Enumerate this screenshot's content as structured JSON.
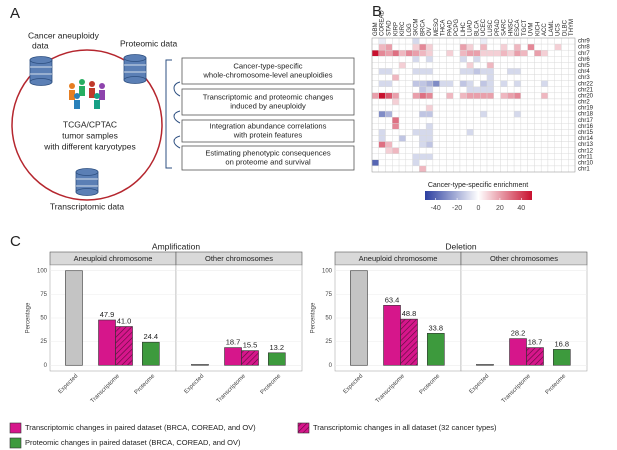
{
  "panel_labels": [
    "A",
    "B",
    "C"
  ],
  "diagram": {
    "sources": [
      [
        "Cancer aneuploidy",
        "data"
      ],
      [
        "Proteomic data"
      ],
      [
        "Transcriptomic data"
      ]
    ],
    "center": [
      "TCGA/CPTAC",
      "tumor samples",
      "with different karyotypes"
    ],
    "steps": [
      [
        "Cancer-type-specific",
        "whole-chromosome-level aneuploidies"
      ],
      [
        "Transcriptomic and proteomic changes",
        "induced by aneuploidy"
      ],
      [
        "Integration abundance correlations",
        "with protein features"
      ],
      [
        "Estimating phenotypic consequences",
        "on proteome and survival"
      ]
    ]
  },
  "chart_data": [
    {
      "type": "heatmap",
      "x": [
        "GBM",
        "COREAD",
        "STAD",
        "KIRP",
        "KIRC",
        "LGG",
        "SKCM",
        "BRCA",
        "OV",
        "MESO",
        "THCA",
        "PAAD",
        "PCPG",
        "LIHC",
        "LUAD",
        "BLCA",
        "UCEC",
        "LUSC",
        "PRAD",
        "SARC",
        "HNSC",
        "ESCA",
        "TGCT",
        "UVM",
        "KICH",
        "ACC",
        "LAML",
        "UCS",
        "DLBC",
        "THYM"
      ],
      "y": [
        "chr9",
        "chr8",
        "chr7",
        "chr6",
        "chr5",
        "chr4",
        "chr3",
        "chr22",
        "chr21",
        "chr20",
        "chr2",
        "chr19",
        "chr18",
        "chr17",
        "chr16",
        "chr15",
        "chr14",
        "chr13",
        "chr12",
        "chr11",
        "chr10",
        "chr1"
      ],
      "values": [
        [
          0,
          -5,
          0,
          0,
          0,
          0,
          -10,
          0,
          0,
          0,
          0,
          0,
          0,
          0,
          0,
          0,
          -5,
          0,
          0,
          0,
          0,
          0,
          0,
          0,
          0,
          0,
          0,
          0,
          0,
          0
        ],
        [
          0,
          15,
          20,
          0,
          0,
          0,
          10,
          25,
          10,
          0,
          0,
          0,
          0,
          20,
          10,
          0,
          15,
          0,
          0,
          10,
          0,
          15,
          0,
          25,
          0,
          0,
          0,
          10,
          0,
          0
        ],
        [
          50,
          25,
          20,
          30,
          15,
          25,
          20,
          15,
          10,
          0,
          0,
          10,
          0,
          15,
          20,
          20,
          10,
          10,
          10,
          15,
          10,
          20,
          15,
          0,
          20,
          10,
          0,
          0,
          0,
          0
        ],
        [
          0,
          0,
          0,
          0,
          0,
          0,
          -10,
          0,
          -10,
          0,
          0,
          0,
          0,
          -10,
          0,
          -10,
          0,
          0,
          0,
          0,
          0,
          0,
          0,
          0,
          0,
          0,
          0,
          0,
          0,
          0
        ],
        [
          0,
          0,
          0,
          0,
          10,
          0,
          0,
          0,
          0,
          0,
          0,
          0,
          0,
          0,
          10,
          0,
          0,
          15,
          0,
          0,
          0,
          0,
          0,
          0,
          0,
          0,
          0,
          0,
          0,
          0
        ],
        [
          0,
          -10,
          -10,
          0,
          0,
          0,
          -10,
          -10,
          -10,
          0,
          0,
          0,
          0,
          -10,
          -10,
          -15,
          -10,
          -10,
          0,
          0,
          -10,
          -10,
          0,
          0,
          0,
          0,
          0,
          0,
          0,
          0
        ],
        [
          0,
          0,
          0,
          15,
          0,
          0,
          0,
          0,
          0,
          0,
          0,
          0,
          0,
          0,
          0,
          0,
          0,
          -10,
          0,
          0,
          0,
          0,
          0,
          0,
          0,
          0,
          0,
          0,
          0,
          0
        ],
        [
          0,
          -10,
          -10,
          0,
          0,
          0,
          -15,
          -15,
          -20,
          -30,
          -10,
          -10,
          0,
          -15,
          -10,
          0,
          -15,
          -10,
          0,
          -10,
          0,
          -10,
          0,
          0,
          0,
          -10,
          0,
          0,
          0,
          0
        ],
        [
          0,
          0,
          0,
          0,
          0,
          0,
          0,
          -15,
          -10,
          0,
          0,
          0,
          0,
          0,
          -10,
          -10,
          -10,
          -10,
          0,
          0,
          0,
          0,
          0,
          0,
          0,
          0,
          0,
          0,
          0,
          0
        ],
        [
          20,
          50,
          35,
          20,
          0,
          0,
          20,
          30,
          25,
          0,
          0,
          15,
          0,
          15,
          20,
          20,
          20,
          20,
          0,
          15,
          20,
          25,
          0,
          0,
          0,
          15,
          0,
          0,
          0,
          0
        ],
        [
          0,
          0,
          0,
          10,
          0,
          0,
          0,
          0,
          0,
          0,
          0,
          0,
          0,
          0,
          0,
          0,
          0,
          0,
          0,
          0,
          0,
          0,
          0,
          0,
          0,
          0,
          0,
          0,
          0,
          0
        ],
        [
          0,
          0,
          0,
          0,
          0,
          0,
          0,
          0,
          10,
          0,
          0,
          0,
          0,
          0,
          0,
          0,
          0,
          0,
          0,
          0,
          0,
          0,
          0,
          0,
          0,
          0,
          0,
          0,
          0,
          0
        ],
        [
          0,
          -30,
          -20,
          0,
          0,
          0,
          0,
          -15,
          -15,
          0,
          0,
          0,
          0,
          0,
          0,
          0,
          -10,
          0,
          0,
          0,
          0,
          -10,
          0,
          0,
          0,
          0,
          0,
          0,
          0,
          0
        ],
        [
          0,
          0,
          0,
          30,
          0,
          0,
          0,
          0,
          0,
          0,
          0,
          0,
          0,
          0,
          0,
          0,
          0,
          0,
          0,
          0,
          0,
          0,
          0,
          0,
          0,
          0,
          0,
          0,
          0,
          0
        ],
        [
          0,
          0,
          0,
          25,
          0,
          0,
          0,
          0,
          -10,
          0,
          0,
          0,
          0,
          0,
          0,
          0,
          0,
          0,
          0,
          0,
          0,
          0,
          0,
          0,
          0,
          0,
          0,
          0,
          0,
          0
        ],
        [
          0,
          -10,
          0,
          0,
          0,
          0,
          -10,
          -10,
          -10,
          0,
          0,
          0,
          0,
          0,
          -10,
          0,
          0,
          0,
          0,
          0,
          0,
          0,
          0,
          0,
          0,
          0,
          0,
          0,
          0,
          0
        ],
        [
          0,
          -10,
          0,
          0,
          -15,
          0,
          0,
          -10,
          -10,
          0,
          0,
          0,
          0,
          0,
          0,
          0,
          0,
          0,
          0,
          0,
          0,
          0,
          0,
          0,
          0,
          0,
          0,
          0,
          0,
          0
        ],
        [
          0,
          30,
          15,
          0,
          0,
          0,
          0,
          -10,
          -15,
          0,
          0,
          0,
          0,
          0,
          0,
          0,
          0,
          0,
          0,
          0,
          0,
          0,
          0,
          0,
          0,
          0,
          0,
          0,
          0,
          0
        ],
        [
          0,
          0,
          10,
          15,
          0,
          0,
          0,
          0,
          0,
          0,
          0,
          0,
          0,
          0,
          0,
          0,
          0,
          0,
          0,
          0,
          0,
          0,
          0,
          0,
          0,
          0,
          0,
          0,
          0,
          0
        ],
        [
          0,
          0,
          0,
          0,
          0,
          0,
          -10,
          -10,
          -10,
          0,
          0,
          0,
          0,
          0,
          0,
          0,
          0,
          0,
          0,
          0,
          0,
          0,
          0,
          0,
          0,
          0,
          0,
          0,
          0,
          0
        ],
        [
          -40,
          0,
          0,
          0,
          0,
          0,
          -10,
          0,
          0,
          0,
          0,
          0,
          0,
          0,
          0,
          0,
          0,
          0,
          0,
          0,
          0,
          0,
          0,
          0,
          0,
          0,
          0,
          0,
          0,
          0
        ],
        [
          0,
          0,
          0,
          0,
          0,
          0,
          0,
          15,
          0,
          0,
          0,
          0,
          0,
          0,
          0,
          0,
          0,
          0,
          0,
          0,
          0,
          0,
          0,
          0,
          0,
          0,
          0,
          0,
          0,
          0
        ]
      ],
      "colormap": [
        "#2c3fa0",
        "#ffffff",
        "#c8102e"
      ],
      "clim": [
        -50,
        50
      ],
      "cticks": [
        -40,
        -20,
        0,
        20,
        40
      ],
      "colorbar_label": "Cancer-type-specific enrichment"
    },
    {
      "type": "bar",
      "ylabel": "Percentage",
      "ylim": [
        -5,
        105
      ],
      "yticks": [
        0,
        25,
        50,
        75,
        100
      ],
      "grid": true,
      "categories": [
        "Expected",
        "Transcriptome",
        "Proteome"
      ],
      "facets": [
        "Aneuploid chromosome",
        "Other chromosomes"
      ],
      "series": [
        {
          "color": "#c4c4c4",
          "category": 0
        },
        {
          "name": "Transcriptomic changes in paired dataset (BRCA, COREAD, and OV)",
          "color": "#d6168b",
          "category": 1
        },
        {
          "name": "Transcriptomic changes in all dataset (32 cancer types)",
          "color": "#d6168b",
          "hatch": true,
          "category": 1
        },
        {
          "name": "Proteomic changes in paired dataset (BRCA, COREAD, and OV)",
          "color": "#3d9a3d",
          "category": 2
        }
      ],
      "panels": [
        {
          "title": "Amplification",
          "values": [
            [
              100,
              47.9,
              41.0,
              24.4
            ],
            [
              1,
              18.7,
              15.5,
              13.2
            ]
          ],
          "value_labels": [
            [
              null,
              "47.9",
              "41.0",
              "24.4"
            ],
            [
              null,
              "18.7",
              "15.5",
              "13.2"
            ]
          ]
        },
        {
          "title": "Deletion",
          "values": [
            [
              100,
              63.4,
              48.8,
              33.8
            ],
            [
              1,
              28.2,
              18.7,
              16.8
            ]
          ],
          "value_labels": [
            [
              null,
              "63.4",
              "48.8",
              "33.8"
            ],
            [
              null,
              "28.2",
              "18.7",
              "16.8"
            ]
          ]
        }
      ]
    }
  ]
}
